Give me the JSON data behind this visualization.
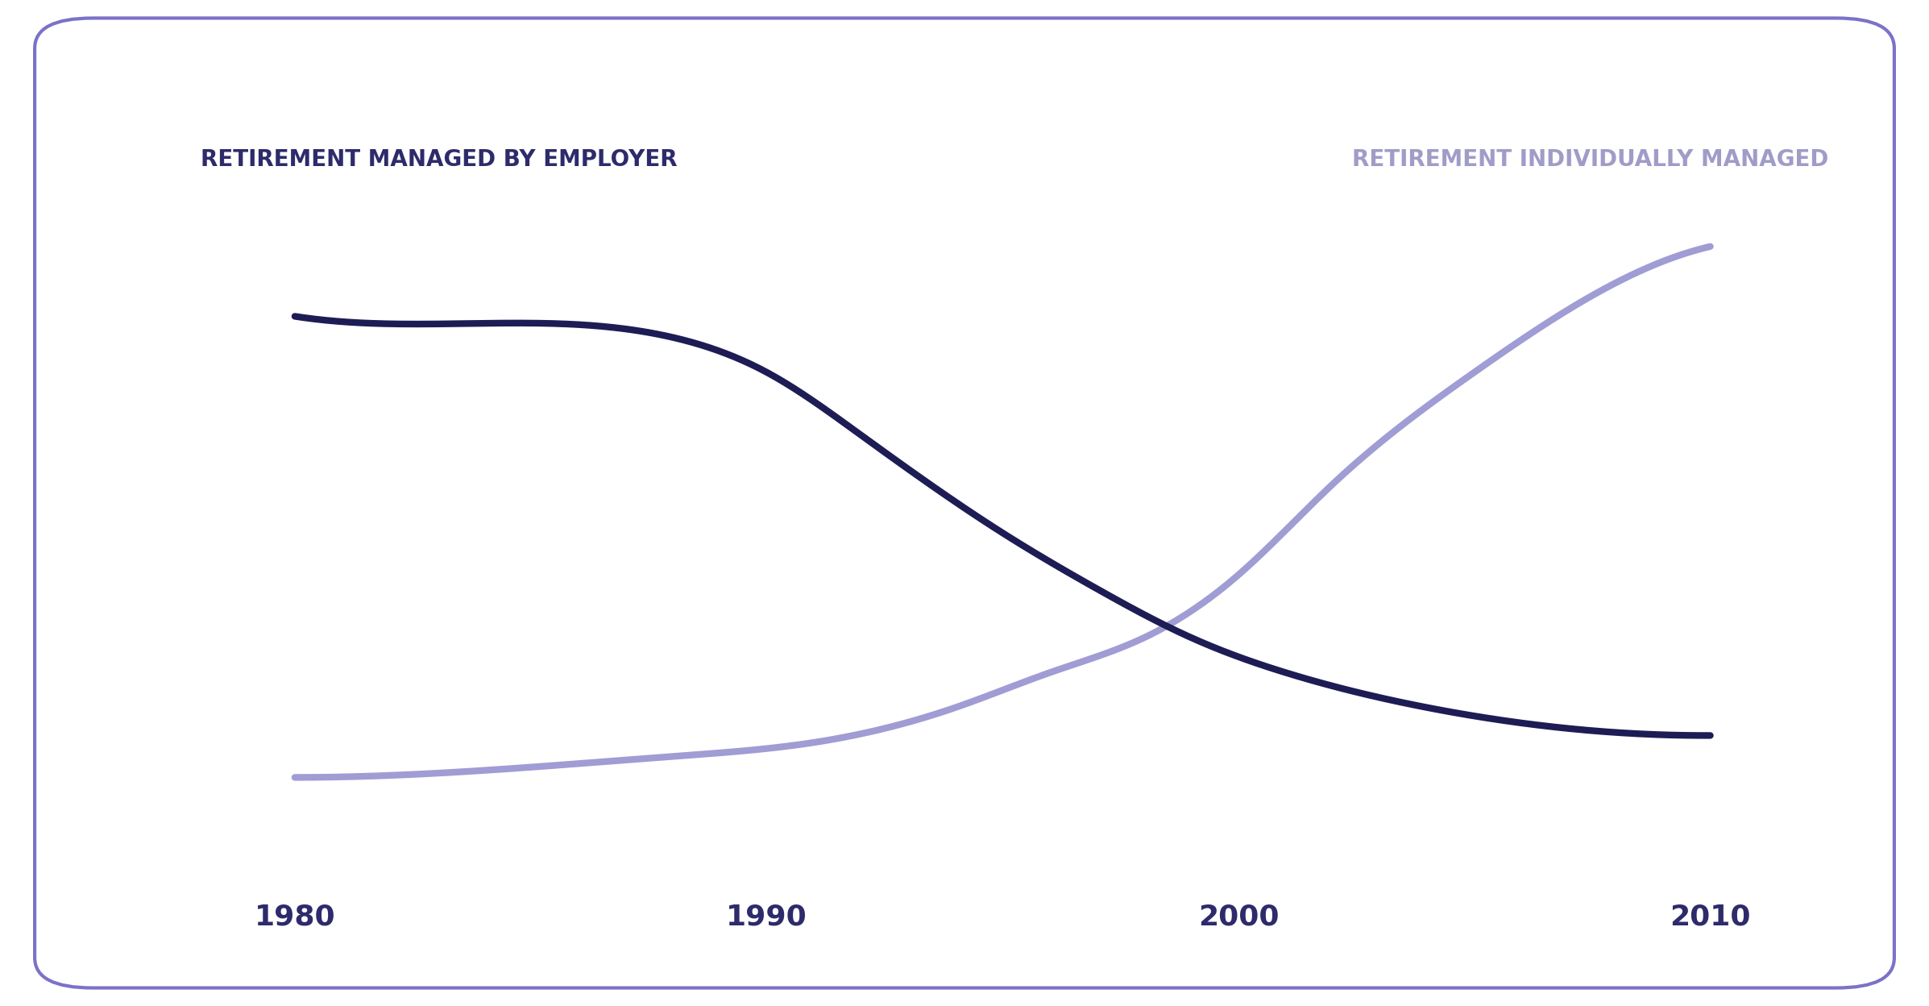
{
  "background_color": "#ffffff",
  "border_color": "#7b72c8",
  "title_employer": "RETIREMENT MANAGED BY EMPLOYER",
  "title_individual": "RETIREMENT INDIVIDUALLY MANAGED",
  "title_employer_color": "#2d2b6b",
  "title_individual_color": "#a09cc8",
  "title_fontsize": 20,
  "line_employer_color": "#1e1c54",
  "line_individual_color": "#a09cd4",
  "line_width": 6,
  "x_ticks": [
    1980,
    1990,
    2000,
    2010
  ],
  "tick_fontsize": 26,
  "tick_color": "#2d2b6b",
  "employer_x": [
    1980,
    1984,
    1988,
    1990,
    1992,
    1995,
    1997,
    1999,
    2001,
    2004,
    2007,
    2010
  ],
  "employer_y": [
    0.8,
    0.79,
    0.77,
    0.72,
    0.63,
    0.49,
    0.41,
    0.34,
    0.29,
    0.24,
    0.21,
    0.2
  ],
  "individual_x": [
    1980,
    1984,
    1988,
    1991,
    1994,
    1996,
    1998,
    2000,
    2002,
    2005,
    2007,
    2010
  ],
  "individual_y": [
    0.14,
    0.15,
    0.17,
    0.19,
    0.24,
    0.29,
    0.34,
    0.43,
    0.56,
    0.72,
    0.81,
    0.9
  ]
}
